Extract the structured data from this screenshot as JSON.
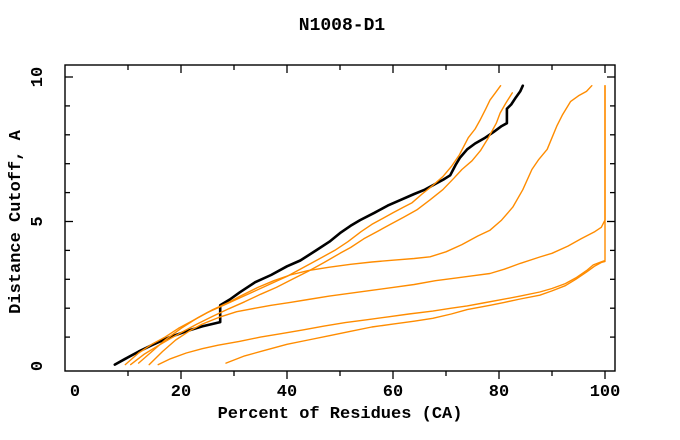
{
  "chart_data": {
    "type": "line",
    "title": "N1008-D1",
    "xlabel": "Percent of Residues (CA)",
    "ylabel": "Distance Cutoff, A",
    "xlim": [
      0,
      100
    ],
    "ylim": [
      0,
      10
    ],
    "grid": false,
    "legend": "none",
    "x_major_ticks": [
      20,
      40,
      60,
      80,
      100
    ],
    "x_minor_ticks": [
      10,
      30,
      50,
      70,
      90
    ],
    "y_major_ticks": [
      5,
      10
    ],
    "y_minor_ticks": [
      1,
      2,
      3,
      4,
      6,
      7,
      8,
      9
    ],
    "x_tick_labels": [
      {
        "value": 0,
        "label": "0"
      },
      {
        "value": 20,
        "label": "20"
      },
      {
        "value": 40,
        "label": "40"
      },
      {
        "value": 60,
        "label": "60"
      },
      {
        "value": 80,
        "label": "80"
      },
      {
        "value": 100,
        "label": "100"
      }
    ],
    "y_tick_labels": [
      {
        "value": 0,
        "label": "0"
      },
      {
        "value": 5,
        "label": "5"
      },
      {
        "value": 10,
        "label": "10"
      }
    ],
    "colors": {
      "reference": "#000000",
      "models": "#ff8c00"
    },
    "series": [
      {
        "name": "reference-curve",
        "color": "#000000",
        "width": 2.6,
        "points": [
          [
            7.5,
            0.05
          ],
          [
            9.5,
            0.25
          ],
          [
            12,
            0.5
          ],
          [
            14.5,
            0.72
          ],
          [
            17.9,
            1.0
          ],
          [
            21,
            1.2
          ],
          [
            24,
            1.37
          ],
          [
            27.4,
            1.52
          ],
          [
            27.4,
            2.1
          ],
          [
            29.2,
            2.3
          ],
          [
            31.1,
            2.55
          ],
          [
            34,
            2.9
          ],
          [
            37,
            3.15
          ],
          [
            40,
            3.45
          ],
          [
            42.5,
            3.65
          ],
          [
            45.5,
            4.0
          ],
          [
            48,
            4.3
          ],
          [
            50,
            4.6
          ],
          [
            52,
            4.85
          ],
          [
            53.8,
            5.05
          ],
          [
            56.5,
            5.3
          ],
          [
            59,
            5.55
          ],
          [
            61.5,
            5.75
          ],
          [
            64,
            5.95
          ],
          [
            66,
            6.1
          ],
          [
            68,
            6.3
          ],
          [
            69.5,
            6.45
          ],
          [
            70.8,
            6.6
          ],
          [
            71.8,
            6.95
          ],
          [
            72.6,
            7.2
          ],
          [
            74,
            7.5
          ],
          [
            75.5,
            7.7
          ],
          [
            77.4,
            7.9
          ],
          [
            79,
            8.1
          ],
          [
            80.5,
            8.3
          ],
          [
            81.5,
            8.4
          ],
          [
            81.5,
            8.9
          ],
          [
            82.3,
            9.05
          ],
          [
            83.2,
            9.3
          ],
          [
            84,
            9.5
          ],
          [
            84.5,
            9.7
          ]
        ]
      },
      {
        "name": "model-curve-1",
        "color": "#ff8c00",
        "width": 1.4,
        "points": [
          [
            9.5,
            0.05
          ],
          [
            12,
            0.45
          ],
          [
            14.5,
            0.75
          ],
          [
            17,
            1.0
          ],
          [
            19.5,
            1.3
          ],
          [
            22,
            1.55
          ],
          [
            25,
            1.85
          ],
          [
            28,
            2.1
          ],
          [
            31,
            2.35
          ],
          [
            34,
            2.6
          ],
          [
            37,
            2.85
          ],
          [
            40,
            3.1
          ],
          [
            43,
            3.4
          ],
          [
            46,
            3.7
          ],
          [
            49,
            4.0
          ],
          [
            51.5,
            4.3
          ],
          [
            54,
            4.65
          ],
          [
            56,
            4.9
          ],
          [
            58,
            5.1
          ],
          [
            60,
            5.3
          ],
          [
            62,
            5.5
          ],
          [
            63.6,
            5.65
          ],
          [
            65.5,
            5.95
          ],
          [
            67.5,
            6.25
          ],
          [
            69.4,
            6.55
          ],
          [
            71,
            6.9
          ],
          [
            72.5,
            7.3
          ],
          [
            74.2,
            7.9
          ],
          [
            75.5,
            8.2
          ],
          [
            76.4,
            8.5
          ],
          [
            77.5,
            8.9
          ],
          [
            78.3,
            9.2
          ],
          [
            79.3,
            9.45
          ],
          [
            80.3,
            9.7
          ]
        ]
      },
      {
        "name": "model-curve-2",
        "color": "#ff8c00",
        "width": 1.4,
        "points": [
          [
            10.5,
            0.05
          ],
          [
            13,
            0.4
          ],
          [
            15.5,
            0.68
          ],
          [
            18,
            0.95
          ],
          [
            20.5,
            1.2
          ],
          [
            23,
            1.45
          ],
          [
            26,
            1.72
          ],
          [
            29,
            1.98
          ],
          [
            32,
            2.22
          ],
          [
            35,
            2.48
          ],
          [
            38,
            2.72
          ],
          [
            41,
            3.0
          ],
          [
            44,
            3.28
          ],
          [
            47,
            3.58
          ],
          [
            50,
            3.9
          ],
          [
            52,
            4.1
          ],
          [
            54.5,
            4.4
          ],
          [
            57,
            4.65
          ],
          [
            59.5,
            4.9
          ],
          [
            62,
            5.15
          ],
          [
            64.5,
            5.4
          ],
          [
            67,
            5.75
          ],
          [
            69.4,
            6.1
          ],
          [
            71.5,
            6.5
          ],
          [
            73,
            6.8
          ],
          [
            74.9,
            7.1
          ],
          [
            76.5,
            7.45
          ],
          [
            78,
            7.9
          ],
          [
            79.5,
            8.4
          ],
          [
            80.2,
            8.75
          ],
          [
            81.3,
            9.1
          ],
          [
            82.5,
            9.45
          ]
        ]
      },
      {
        "name": "model-curve-3",
        "color": "#ff8c00",
        "width": 1.4,
        "points": [
          [
            12,
            0.1
          ],
          [
            14.5,
            0.5
          ],
          [
            17,
            0.9
          ],
          [
            20,
            1.3
          ],
          [
            23,
            1.65
          ],
          [
            26,
            1.95
          ],
          [
            29,
            2.2
          ],
          [
            31,
            2.4
          ],
          [
            34.5,
            2.72
          ],
          [
            37.5,
            2.95
          ],
          [
            40.6,
            3.15
          ],
          [
            44,
            3.3
          ],
          [
            48,
            3.42
          ],
          [
            52,
            3.52
          ],
          [
            56,
            3.6
          ],
          [
            60,
            3.66
          ],
          [
            64,
            3.72
          ],
          [
            67,
            3.78
          ],
          [
            70,
            3.95
          ],
          [
            73,
            4.2
          ],
          [
            76,
            4.5
          ],
          [
            78.3,
            4.7
          ],
          [
            80.5,
            5.05
          ],
          [
            82.6,
            5.5
          ],
          [
            84.5,
            6.1
          ],
          [
            86.2,
            6.8
          ],
          [
            87.5,
            7.15
          ],
          [
            89.1,
            7.5
          ],
          [
            90,
            7.9
          ],
          [
            90.9,
            8.3
          ],
          [
            92,
            8.7
          ],
          [
            93.5,
            9.15
          ],
          [
            95,
            9.35
          ],
          [
            96.5,
            9.5
          ],
          [
            97.5,
            9.7
          ]
        ]
      },
      {
        "name": "model-curve-4",
        "color": "#ff8c00",
        "width": 1.4,
        "points": [
          [
            14,
            0.05
          ],
          [
            16.5,
            0.5
          ],
          [
            19,
            0.9
          ],
          [
            21.5,
            1.2
          ],
          [
            24,
            1.45
          ],
          [
            27.4,
            1.7
          ],
          [
            30.5,
            1.88
          ],
          [
            34,
            2.0
          ],
          [
            37,
            2.1
          ],
          [
            40.6,
            2.2
          ],
          [
            44,
            2.3
          ],
          [
            48,
            2.42
          ],
          [
            52,
            2.52
          ],
          [
            56,
            2.62
          ],
          [
            60,
            2.72
          ],
          [
            64,
            2.82
          ],
          [
            68,
            2.95
          ],
          [
            72,
            3.05
          ],
          [
            75,
            3.12
          ],
          [
            78.3,
            3.2
          ],
          [
            81,
            3.35
          ],
          [
            84,
            3.55
          ],
          [
            87.7,
            3.77
          ],
          [
            90,
            3.9
          ],
          [
            93,
            4.15
          ],
          [
            95.5,
            4.4
          ],
          [
            98.1,
            4.65
          ],
          [
            99.3,
            4.8
          ],
          [
            100,
            5.05
          ],
          [
            100,
            9.7
          ]
        ]
      },
      {
        "name": "model-curve-5",
        "color": "#ff8c00",
        "width": 1.4,
        "points": [
          [
            15.7,
            0.05
          ],
          [
            18,
            0.25
          ],
          [
            21,
            0.45
          ],
          [
            24,
            0.6
          ],
          [
            27,
            0.72
          ],
          [
            31,
            0.85
          ],
          [
            35,
            1.0
          ],
          [
            39,
            1.12
          ],
          [
            43,
            1.25
          ],
          [
            47,
            1.38
          ],
          [
            51,
            1.5
          ],
          [
            55,
            1.6
          ],
          [
            59,
            1.7
          ],
          [
            63,
            1.8
          ],
          [
            67.5,
            1.9
          ],
          [
            71,
            2.0
          ],
          [
            74,
            2.08
          ],
          [
            77,
            2.18
          ],
          [
            80,
            2.28
          ],
          [
            84,
            2.42
          ],
          [
            87.7,
            2.56
          ],
          [
            90,
            2.68
          ],
          [
            92.5,
            2.85
          ],
          [
            94.5,
            3.05
          ],
          [
            96.5,
            3.3
          ],
          [
            97.8,
            3.5
          ],
          [
            99.2,
            3.6
          ],
          [
            100,
            3.65
          ],
          [
            100,
            9.7
          ]
        ]
      },
      {
        "name": "model-curve-6",
        "color": "#ff8c00",
        "width": 1.4,
        "points": [
          [
            28.5,
            0.1
          ],
          [
            32,
            0.35
          ],
          [
            36,
            0.55
          ],
          [
            40,
            0.75
          ],
          [
            44,
            0.9
          ],
          [
            48,
            1.05
          ],
          [
            52,
            1.2
          ],
          [
            56,
            1.35
          ],
          [
            60,
            1.45
          ],
          [
            64,
            1.55
          ],
          [
            67.5,
            1.65
          ],
          [
            71,
            1.8
          ],
          [
            74,
            1.95
          ],
          [
            78.3,
            2.1
          ],
          [
            81,
            2.2
          ],
          [
            84,
            2.32
          ],
          [
            87.7,
            2.45
          ],
          [
            90,
            2.6
          ],
          [
            92.5,
            2.78
          ],
          [
            94.5,
            3.0
          ],
          [
            96.5,
            3.25
          ],
          [
            98,
            3.45
          ],
          [
            99.3,
            3.58
          ],
          [
            100,
            3.62
          ]
        ]
      }
    ]
  }
}
